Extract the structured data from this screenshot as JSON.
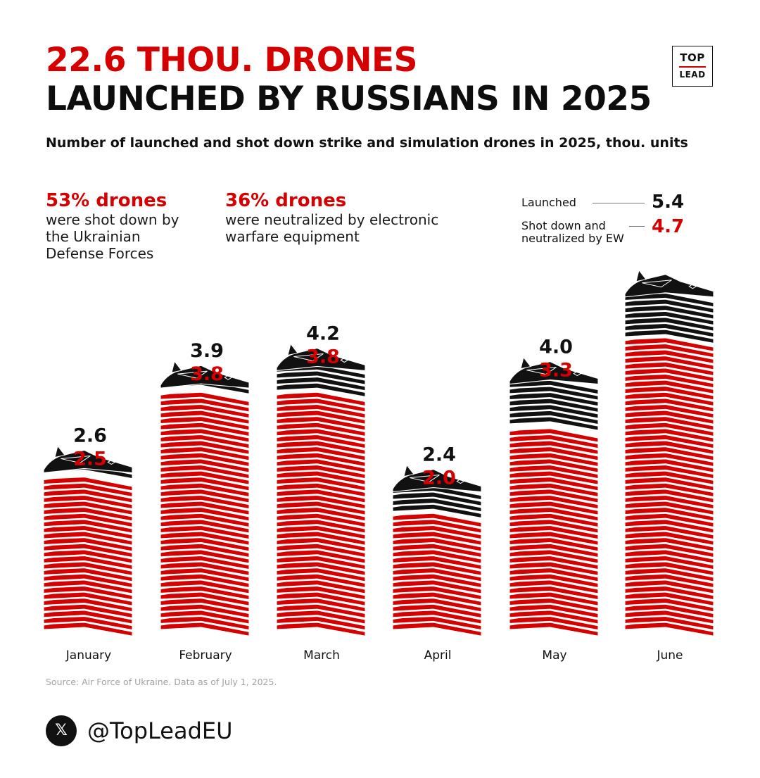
{
  "title": {
    "line1": "22.6 THOU. DRONES",
    "line2": "LAUNCHED BY RUSSIANS IN 2025"
  },
  "logo": {
    "line1": "TOP",
    "line2": "LEAD"
  },
  "subtitle": "Number of launched and shot down strike and simulation drones in 2025, thou. units",
  "callouts": [
    {
      "pct": "53% drones",
      "desc": "were shot down by the Ukrainian Defense Forces"
    },
    {
      "pct": "36% drones",
      "desc": "were neutralized by electronic warfare equipment"
    }
  ],
  "legend": {
    "launched_label": "Launched",
    "launched_value": "5.4",
    "shot_label": "Shot down and neutralized by EW",
    "shot_value": "4.7"
  },
  "colors": {
    "red": "#d50000",
    "black": "#111111"
  },
  "chart_data": {
    "type": "bar",
    "title": "Number of launched and shot down strike and simulation drones in 2025, thou. units",
    "unit": "thou. units",
    "categories": [
      "January",
      "February",
      "March",
      "April",
      "May",
      "June"
    ],
    "series": [
      {
        "name": "Launched",
        "color": "#111111",
        "values": [
          2.6,
          3.9,
          4.2,
          2.4,
          4.0,
          5.4
        ],
        "labels": [
          "2.6",
          "3.9",
          "4.2",
          "2.4",
          "4.0",
          null
        ]
      },
      {
        "name": "Shot down and neutralized by EW",
        "color": "#d50000",
        "values": [
          2.5,
          3.8,
          3.8,
          2.0,
          3.3,
          4.7
        ],
        "labels": [
          "2.5",
          "3.8",
          "3.8",
          "2.0",
          "3.3",
          null
        ]
      }
    ],
    "ylim": [
      0,
      5.4
    ],
    "legend": "top-right"
  },
  "source": "Source: Air Force of Ukraine. Data as of July 1, 2025.",
  "footer": {
    "x_icon": "x-logo-icon",
    "x_glyph": "𝕏",
    "handle": "@TopLeadEU"
  }
}
